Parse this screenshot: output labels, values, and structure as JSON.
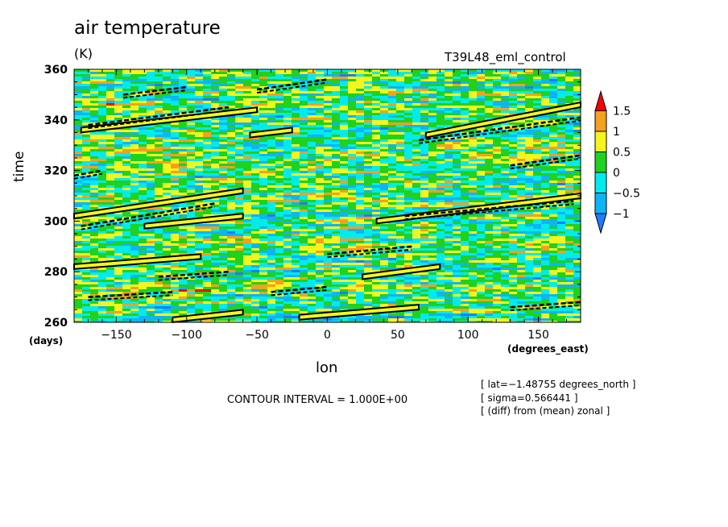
{
  "chart_data": {
    "type": "heatmap",
    "title": "air temperature",
    "units": "(K)",
    "run_label": "T39L48_eml_control",
    "xlabel": "lon",
    "ylabel": "time",
    "x_units": "(degrees_east)",
    "y_units": "(days)",
    "xlim": [
      -180,
      180
    ],
    "ylim": [
      260,
      360
    ],
    "x_ticks": [
      -150,
      -100,
      -50,
      0,
      50,
      100,
      150
    ],
    "y_ticks": [
      260,
      280,
      300,
      320,
      340,
      360
    ],
    "x_tick_labels": [
      "−150",
      "−100",
      "−50",
      "0",
      "50",
      "100",
      "150"
    ],
    "y_tick_labels": [
      "260",
      "280",
      "300",
      "320",
      "340",
      "360"
    ],
    "colorbar": {
      "levels": [
        -1,
        -0.5,
        0,
        0.5,
        1,
        1.5
      ],
      "labels": [
        "−1",
        "−0.5",
        "0",
        "0.5",
        "1",
        "1.5"
      ],
      "colors": [
        "#1e7dff",
        "#0fb4f5",
        "#00ecec",
        "#1ed21e",
        "#f5f51e",
        "#f5a01e",
        "#ff0000"
      ]
    },
    "contour_interval_text": "CONTOUR INTERVAL = 1.000E+00",
    "info_lines": [
      "[ lat=−1.48755 degrees_north ]",
      "[ sigma=0.566441 ]",
      "[ (diff) from (mean) zonal ]"
    ],
    "contour_features": [
      {
        "lon0": -175,
        "lon1": -50,
        "t0": 336,
        "t1": 344,
        "kind": "solid"
      },
      {
        "lon0": -170,
        "lon1": -70,
        "t0": 338,
        "t1": 345,
        "kind": "dashed"
      },
      {
        "lon0": -145,
        "lon1": -100,
        "t0": 350,
        "t1": 353,
        "kind": "dashed"
      },
      {
        "lon0": -50,
        "lon1": 0,
        "t0": 352,
        "t1": 356,
        "kind": "dashed"
      },
      {
        "lon0": -55,
        "lon1": -25,
        "t0": 334,
        "t1": 336,
        "kind": "solid"
      },
      {
        "lon0": 70,
        "lon1": 180,
        "t0": 334,
        "t1": 346,
        "kind": "solid"
      },
      {
        "lon0": 65,
        "lon1": 180,
        "t0": 332,
        "t1": 341,
        "kind": "dashed"
      },
      {
        "lon0": 130,
        "lon1": 180,
        "t0": 322,
        "t1": 326,
        "kind": "dashed"
      },
      {
        "lon0": -180,
        "lon1": -160,
        "t0": 318,
        "t1": 320,
        "kind": "dashed"
      },
      {
        "lon0": -180,
        "lon1": -60,
        "t0": 302,
        "t1": 312,
        "kind": "solid"
      },
      {
        "lon0": -175,
        "lon1": -80,
        "t0": 298,
        "t1": 307,
        "kind": "dashed"
      },
      {
        "lon0": -130,
        "lon1": -60,
        "t0": 298,
        "t1": 302,
        "kind": "solid"
      },
      {
        "lon0": 35,
        "lon1": 180,
        "t0": 300,
        "t1": 310,
        "kind": "solid"
      },
      {
        "lon0": 55,
        "lon1": 175,
        "t0": 302,
        "t1": 308,
        "kind": "dashed"
      },
      {
        "lon0": 0,
        "lon1": 60,
        "t0": 287,
        "t1": 290,
        "kind": "dashed"
      },
      {
        "lon0": -180,
        "lon1": -90,
        "t0": 282,
        "t1": 286,
        "kind": "solid"
      },
      {
        "lon0": -120,
        "lon1": -70,
        "t0": 278,
        "t1": 280,
        "kind": "dashed"
      },
      {
        "lon0": 25,
        "lon1": 80,
        "t0": 278,
        "t1": 282,
        "kind": "solid"
      },
      {
        "lon0": -170,
        "lon1": -110,
        "t0": 270,
        "t1": 272,
        "kind": "dashed"
      },
      {
        "lon0": -40,
        "lon1": 0,
        "t0": 272,
        "t1": 274,
        "kind": "dashed"
      },
      {
        "lon0": -110,
        "lon1": -60,
        "t0": 261,
        "t1": 264,
        "kind": "solid"
      },
      {
        "lon0": -20,
        "lon1": 65,
        "t0": 262,
        "t1": 266,
        "kind": "solid"
      },
      {
        "lon0": 130,
        "lon1": 180,
        "t0": 266,
        "t1": 268,
        "kind": "dashed"
      }
    ]
  }
}
